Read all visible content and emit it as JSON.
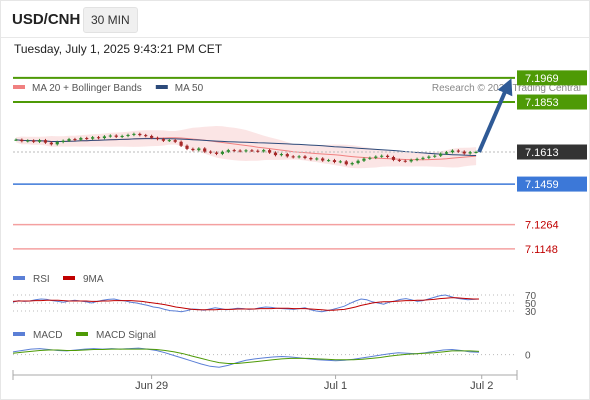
{
  "header": {
    "pair": "USD/CNH",
    "interval": "30 MIN"
  },
  "timestamp": "Tuesday, July 1, 2025 9:43:21 PM CET",
  "colors": {
    "resistance": "#4e9a06",
    "support": "#3c78d8",
    "pivot_dark": "#333333",
    "light_red": "#f4a0a0",
    "arrow": "#2f5a96",
    "candle_up": "#2e8b2e",
    "candle_down": "#a62828",
    "ma20": "#f08080",
    "ma50": "#2c4a7a",
    "rsi": "#5b7fd6",
    "rsi_ma": "#c00000",
    "macd": "#5b7fd6",
    "macd_signal": "#4e9a06"
  },
  "chart_data": [
    {
      "type": "candlestick",
      "legend": [
        {
          "label": "MA 20 + Bollinger Bands",
          "color": "#f08080"
        },
        {
          "label": "MA 50",
          "color": "#2c4a7a"
        }
      ],
      "source_note": "Research © 2025 Trading Central",
      "x_ticks": [
        "Jun 29",
        "Jul 1",
        "Jul 2"
      ],
      "levels": [
        {
          "value": 7.1969,
          "label": "7.1969",
          "kind": "resistance"
        },
        {
          "value": 7.1853,
          "label": "7.1853",
          "kind": "resistance"
        },
        {
          "value": 7.1613,
          "label": "7.1613",
          "kind": "pivot"
        },
        {
          "value": 7.1459,
          "label": "7.1459",
          "kind": "support"
        },
        {
          "value": 7.1264,
          "label": "7.1264",
          "kind": "minor"
        },
        {
          "value": 7.1148,
          "label": "7.1148",
          "kind": "minor"
        }
      ],
      "ylim": [
        7.108,
        7.205
      ],
      "closes": [
        7.1672,
        7.1665,
        7.1668,
        7.1662,
        7.167,
        7.1658,
        7.165,
        7.1661,
        7.1667,
        7.1675,
        7.1672,
        7.168,
        7.1677,
        7.1684,
        7.168,
        7.1688,
        7.1692,
        7.1686,
        7.169,
        7.1695,
        7.17,
        7.1694,
        7.169,
        7.1681,
        7.1675,
        7.1667,
        7.167,
        7.1662,
        7.1643,
        7.1628,
        7.1622,
        7.163,
        7.1615,
        7.161,
        7.1604,
        7.1614,
        7.1622,
        7.162,
        7.1617,
        7.1621,
        7.1619,
        7.1616,
        7.1622,
        7.161,
        7.1598,
        7.1603,
        7.1592,
        7.1588,
        7.1592,
        7.1584,
        7.1578,
        7.1582,
        7.1572,
        7.1574,
        7.1565,
        7.1568,
        7.1554,
        7.156,
        7.1571,
        7.1581,
        7.1585,
        7.1591,
        7.1595,
        7.1589,
        7.1575,
        7.1571,
        7.1568,
        7.1575,
        7.158,
        7.1585,
        7.1591,
        7.1595,
        7.1605,
        7.1612,
        7.162,
        7.1615,
        7.1606,
        7.1612,
        7.1613
      ]
    },
    {
      "type": "line",
      "name": "RSI",
      "legend": [
        {
          "label": "RSI",
          "color": "#5b7fd6"
        },
        {
          "label": "9MA",
          "color": "#c00000"
        }
      ],
      "y_ticks": [
        70,
        50,
        30
      ],
      "ylim": [
        10,
        90
      ],
      "rsi": [
        52,
        56,
        54,
        55,
        58,
        60,
        59,
        56,
        54,
        52,
        55,
        57,
        55,
        53,
        50,
        54,
        57,
        59,
        60,
        57,
        55,
        52,
        50,
        47,
        44,
        40,
        38,
        34,
        31,
        30,
        28,
        31,
        35,
        34,
        32,
        35,
        38,
        36,
        33,
        35,
        37,
        36,
        34,
        35,
        38,
        40,
        39,
        37,
        36,
        35,
        34,
        36,
        38,
        33,
        30,
        28,
        31,
        34,
        38,
        42,
        49,
        55,
        60,
        58,
        53,
        50,
        47,
        52,
        55,
        59,
        61,
        58,
        54,
        56,
        60,
        64,
        68,
        70,
        66,
        62,
        60,
        58,
        59,
        60
      ],
      "ma9": [
        54,
        55,
        55,
        55,
        56,
        56,
        57,
        57,
        57,
        56,
        55,
        55,
        55,
        55,
        54,
        54,
        55,
        55,
        56,
        56,
        56,
        56,
        55,
        54,
        52,
        50,
        48,
        46,
        43,
        40,
        38,
        36,
        34,
        33,
        33,
        33,
        33,
        34,
        34,
        34,
        35,
        35,
        35,
        35,
        36,
        36,
        36,
        37,
        37,
        37,
        36,
        36,
        36,
        35,
        34,
        33,
        32,
        32,
        33,
        34,
        37,
        40,
        44,
        47,
        50,
        52,
        53,
        53,
        54,
        55,
        56,
        56,
        57,
        57,
        58,
        59,
        61,
        62,
        63,
        63,
        62,
        61,
        60,
        60
      ]
    },
    {
      "type": "line",
      "name": "MACD",
      "legend": [
        {
          "label": "MACD",
          "color": "#5b7fd6"
        },
        {
          "label": "MACD Signal",
          "color": "#4e9a06"
        }
      ],
      "y_ticks": [
        0
      ],
      "ylim": [
        -0.0035,
        0.0025
      ],
      "macd": [
        0.0006,
        0.0009,
        0.0012,
        0.0013,
        0.0011,
        0.0009,
        0.0008,
        0.001,
        0.0012,
        0.0013,
        0.0012,
        0.0013,
        0.0012,
        0.0013,
        0.0014,
        0.0012,
        0.0009,
        0.0004,
        -0.0002,
        -0.0008,
        -0.0014,
        -0.002,
        -0.0025,
        -0.0027,
        -0.0023,
        -0.0017,
        -0.0012,
        -0.0009,
        -0.0007,
        -0.0005,
        -0.0004,
        -0.0005,
        -0.0007,
        -0.0009,
        -0.0011,
        -0.0012,
        -0.0013,
        -0.0012,
        -0.001,
        -0.0007,
        -0.0004,
        -0.0001,
        0.0002,
        0.0004,
        0.0003,
        0.0002,
        0.0004,
        0.0007,
        0.001,
        0.0011,
        0.0009,
        0.0006,
        0.0005
      ],
      "signal": [
        0.0003,
        0.0005,
        0.0007,
        0.0009,
        0.001,
        0.001,
        0.0009,
        0.0009,
        0.001,
        0.0011,
        0.0011,
        0.0012,
        0.0012,
        0.0012,
        0.0012,
        0.0012,
        0.0011,
        0.0009,
        0.0006,
        0.0002,
        -0.0003,
        -0.0008,
        -0.0013,
        -0.0017,
        -0.0019,
        -0.0019,
        -0.0017,
        -0.0015,
        -0.0013,
        -0.0011,
        -0.0009,
        -0.0008,
        -0.0008,
        -0.0008,
        -0.0009,
        -0.001,
        -0.0011,
        -0.0011,
        -0.0011,
        -0.001,
        -0.0008,
        -0.0006,
        -0.0003,
        -0.0001,
        0.0001,
        0.0002,
        0.0003,
        0.0004,
        0.0006,
        0.0008,
        0.0008,
        0.0008,
        0.0007
      ]
    }
  ]
}
